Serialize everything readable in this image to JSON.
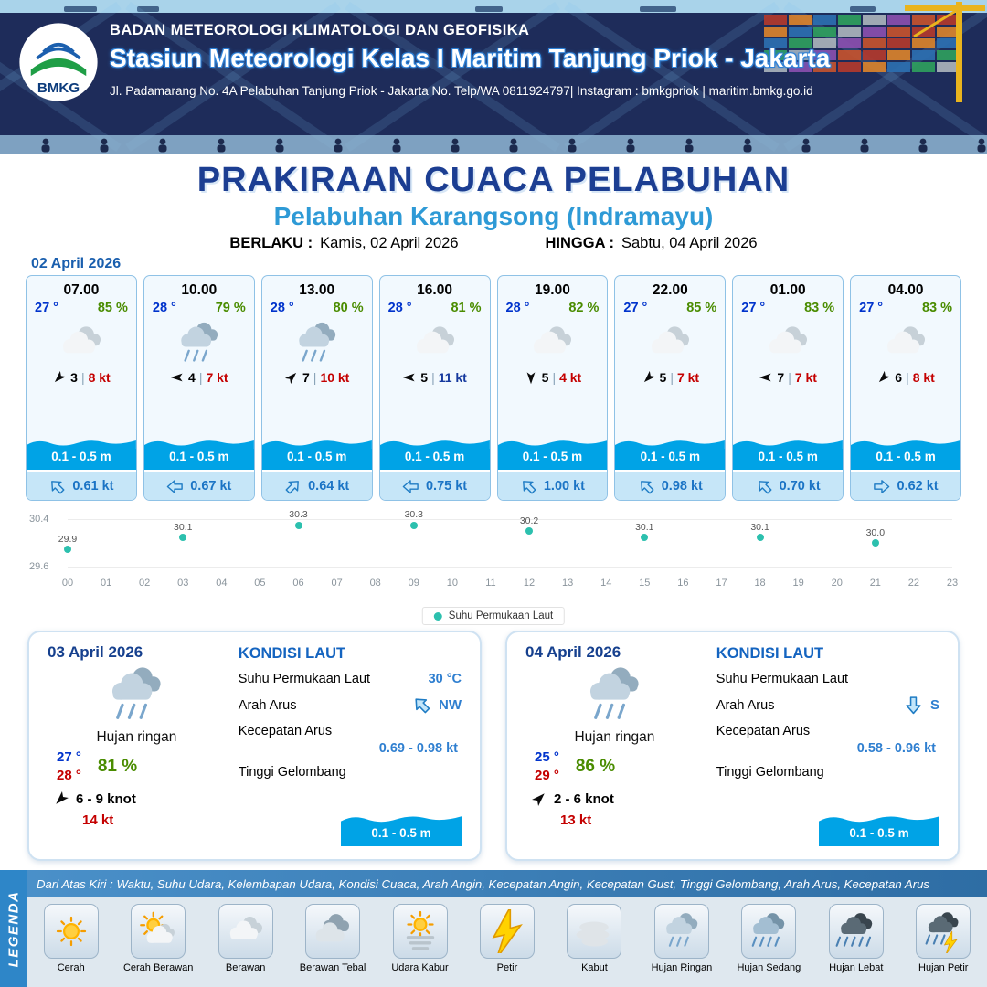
{
  "header": {
    "agency": "BADAN METEOROLOGI KLIMATOLOGI DAN GEOFISIKA",
    "station": "Stasiun Meteorologi Kelas I Maritim Tanjung Priok - Jakarta",
    "address": "Jl. Padamarang No. 4A Pelabuhan Tanjung Priok - Jakarta No. Telp/WA 0811924797| Instagram : bmkgpriok | maritim.bmkg.go.id",
    "logo_text": "BMKG"
  },
  "title": {
    "main": "PRAKIRAAN CUACA PELABUHAN",
    "port": "Pelabuhan Karangsong (Indramayu)",
    "valid_label": "BERLAKU :",
    "valid_value": "Kamis, 02 April 2026",
    "until_label": "HINGGA :",
    "until_value": "Sabtu, 04 April 2026"
  },
  "forecast_date": "02 April 2026",
  "hourly": [
    {
      "time": "07.00",
      "temp": "27 °",
      "humidity": "85 %",
      "icon": "berawan",
      "wind_dir": "SW",
      "wind": "3",
      "gust": "8 kt",
      "gust_color": "#c40000",
      "wave": "0.1 - 0.5 m",
      "current_dir": "NW",
      "current": "0.61 kt"
    },
    {
      "time": "10.00",
      "temp": "28 °",
      "humidity": "79 %",
      "icon": "hujan-ringan",
      "wind_dir": "W",
      "wind": "4",
      "gust": "7 kt",
      "gust_color": "#c40000",
      "wave": "0.1 - 0.5 m",
      "current_dir": "W",
      "current": "0.67 kt"
    },
    {
      "time": "13.00",
      "temp": "28 °",
      "humidity": "80 %",
      "icon": "hujan-ringan",
      "wind_dir": "NE",
      "wind": "7",
      "gust": "10 kt",
      "gust_color": "#c40000",
      "wave": "0.1 - 0.5 m",
      "current_dir": "NE",
      "current": "0.64 kt"
    },
    {
      "time": "16.00",
      "temp": "28 °",
      "humidity": "81 %",
      "icon": "berawan",
      "wind_dir": "W",
      "wind": "5",
      "gust": "11 kt",
      "gust_color": "#16399e",
      "wave": "0.1 - 0.5 m",
      "current_dir": "W",
      "current": "0.75 kt"
    },
    {
      "time": "19.00",
      "temp": "28 °",
      "humidity": "82 %",
      "icon": "berawan",
      "wind_dir": "S",
      "wind": "5",
      "gust": "4 kt",
      "gust_color": "#c40000",
      "wave": "0.1 - 0.5 m",
      "current_dir": "NW",
      "current": "1.00 kt"
    },
    {
      "time": "22.00",
      "temp": "27 °",
      "humidity": "85 %",
      "icon": "berawan",
      "wind_dir": "SW",
      "wind": "5",
      "gust": "7 kt",
      "gust_color": "#c40000",
      "wave": "0.1 - 0.5 m",
      "current_dir": "NW",
      "current": "0.98 kt"
    },
    {
      "time": "01.00",
      "temp": "27 °",
      "humidity": "83 %",
      "icon": "berawan",
      "wind_dir": "W",
      "wind": "7",
      "gust": "7 kt",
      "gust_color": "#c40000",
      "wave": "0.1 - 0.5 m",
      "current_dir": "NW",
      "current": "0.70 kt"
    },
    {
      "time": "04.00",
      "temp": "27 °",
      "humidity": "83 %",
      "icon": "berawan",
      "wind_dir": "SW",
      "wind": "6",
      "gust": "8 kt",
      "gust_color": "#c40000",
      "wave": "0.1 - 0.5 m",
      "current_dir": "E",
      "current": "0.62 kt"
    }
  ],
  "chart_data": {
    "type": "scatter",
    "series_name": "Suhu Permukaan Laut",
    "x": [
      0,
      3,
      6,
      9,
      12,
      15,
      18,
      21
    ],
    "values": [
      29.9,
      30.1,
      30.3,
      30.3,
      30.2,
      30.1,
      30.1,
      30.0
    ],
    "x_ticks": [
      "00",
      "01",
      "02",
      "03",
      "04",
      "05",
      "06",
      "07",
      "08",
      "09",
      "10",
      "11",
      "12",
      "13",
      "14",
      "15",
      "16",
      "17",
      "18",
      "19",
      "20",
      "21",
      "22",
      "23"
    ],
    "ylim": [
      29.6,
      30.4
    ],
    "y_tick_top": "30.4",
    "y_tick_bottom": "29.6",
    "dot_color": "#2cc0ae",
    "legend_position": "bottom-center",
    "grid": "minimal"
  },
  "daily": [
    {
      "date": "03 April 2026",
      "icon": "hujan-ringan",
      "condition": "Hujan ringan",
      "temp_min": "27 °",
      "temp_max": "28 °",
      "humidity": "81 %",
      "wind_dir": "SW",
      "wind_range": "6  - 9 knot",
      "gust": "14 kt",
      "sea": {
        "heading": "KONDISI LAUT",
        "sst_label": "Suhu Permukaan Laut",
        "sst": "30 °C",
        "current_dir_label": "Arah Arus",
        "current_dir": "NW",
        "current_speed_label": "Kecepatan Arus",
        "current_speed": "0.69  - 0.98 kt",
        "wave_label": "Tinggi Gelombang",
        "wave": "0.1 - 0.5 m"
      }
    },
    {
      "date": "04 April 2026",
      "icon": "hujan-ringan",
      "condition": "Hujan ringan",
      "temp_min": "25 °",
      "temp_max": "29 °",
      "humidity": "86 %",
      "wind_dir": "NE",
      "wind_range": "2  - 6 knot",
      "gust": "13 kt",
      "sea": {
        "heading": "KONDISI LAUT",
        "sst_label": "Suhu Permukaan Laut",
        "sst": "",
        "current_dir_label": "Arah Arus",
        "current_dir": "S",
        "current_speed_label": "Kecepatan Arus",
        "current_speed": "0.58  - 0.96 kt",
        "wave_label": "Tinggi Gelombang",
        "wave": "0.1 - 0.5 m"
      }
    }
  ],
  "legend": {
    "title": "LEGENDA",
    "info": "Dari Atas Kiri : Waktu, Suhu Udara, Kelembapan Udara, Kondisi Cuaca, Arah Angin, Kecepatan Angin, Kecepatan Gust, Tinggi Gelombang, Arah Arus, Kecepatan Arus",
    "items": [
      {
        "icon": "cerah",
        "label": "Cerah"
      },
      {
        "icon": "cerah-berawan",
        "label": "Cerah Berawan"
      },
      {
        "icon": "berawan",
        "label": "Berawan"
      },
      {
        "icon": "berawan-tebal",
        "label": "Berawan Tebal"
      },
      {
        "icon": "udara-kabur",
        "label": "Udara Kabur"
      },
      {
        "icon": "petir",
        "label": "Petir"
      },
      {
        "icon": "kabut",
        "label": "Kabut"
      },
      {
        "icon": "hujan-ringan",
        "label": "Hujan Ringan"
      },
      {
        "icon": "hujan-sedang",
        "label": "Hujan Sedang"
      },
      {
        "icon": "hujan-lebat",
        "label": "Hujan Lebat"
      },
      {
        "icon": "hujan-petir",
        "label": "Hujan Petir"
      }
    ]
  }
}
